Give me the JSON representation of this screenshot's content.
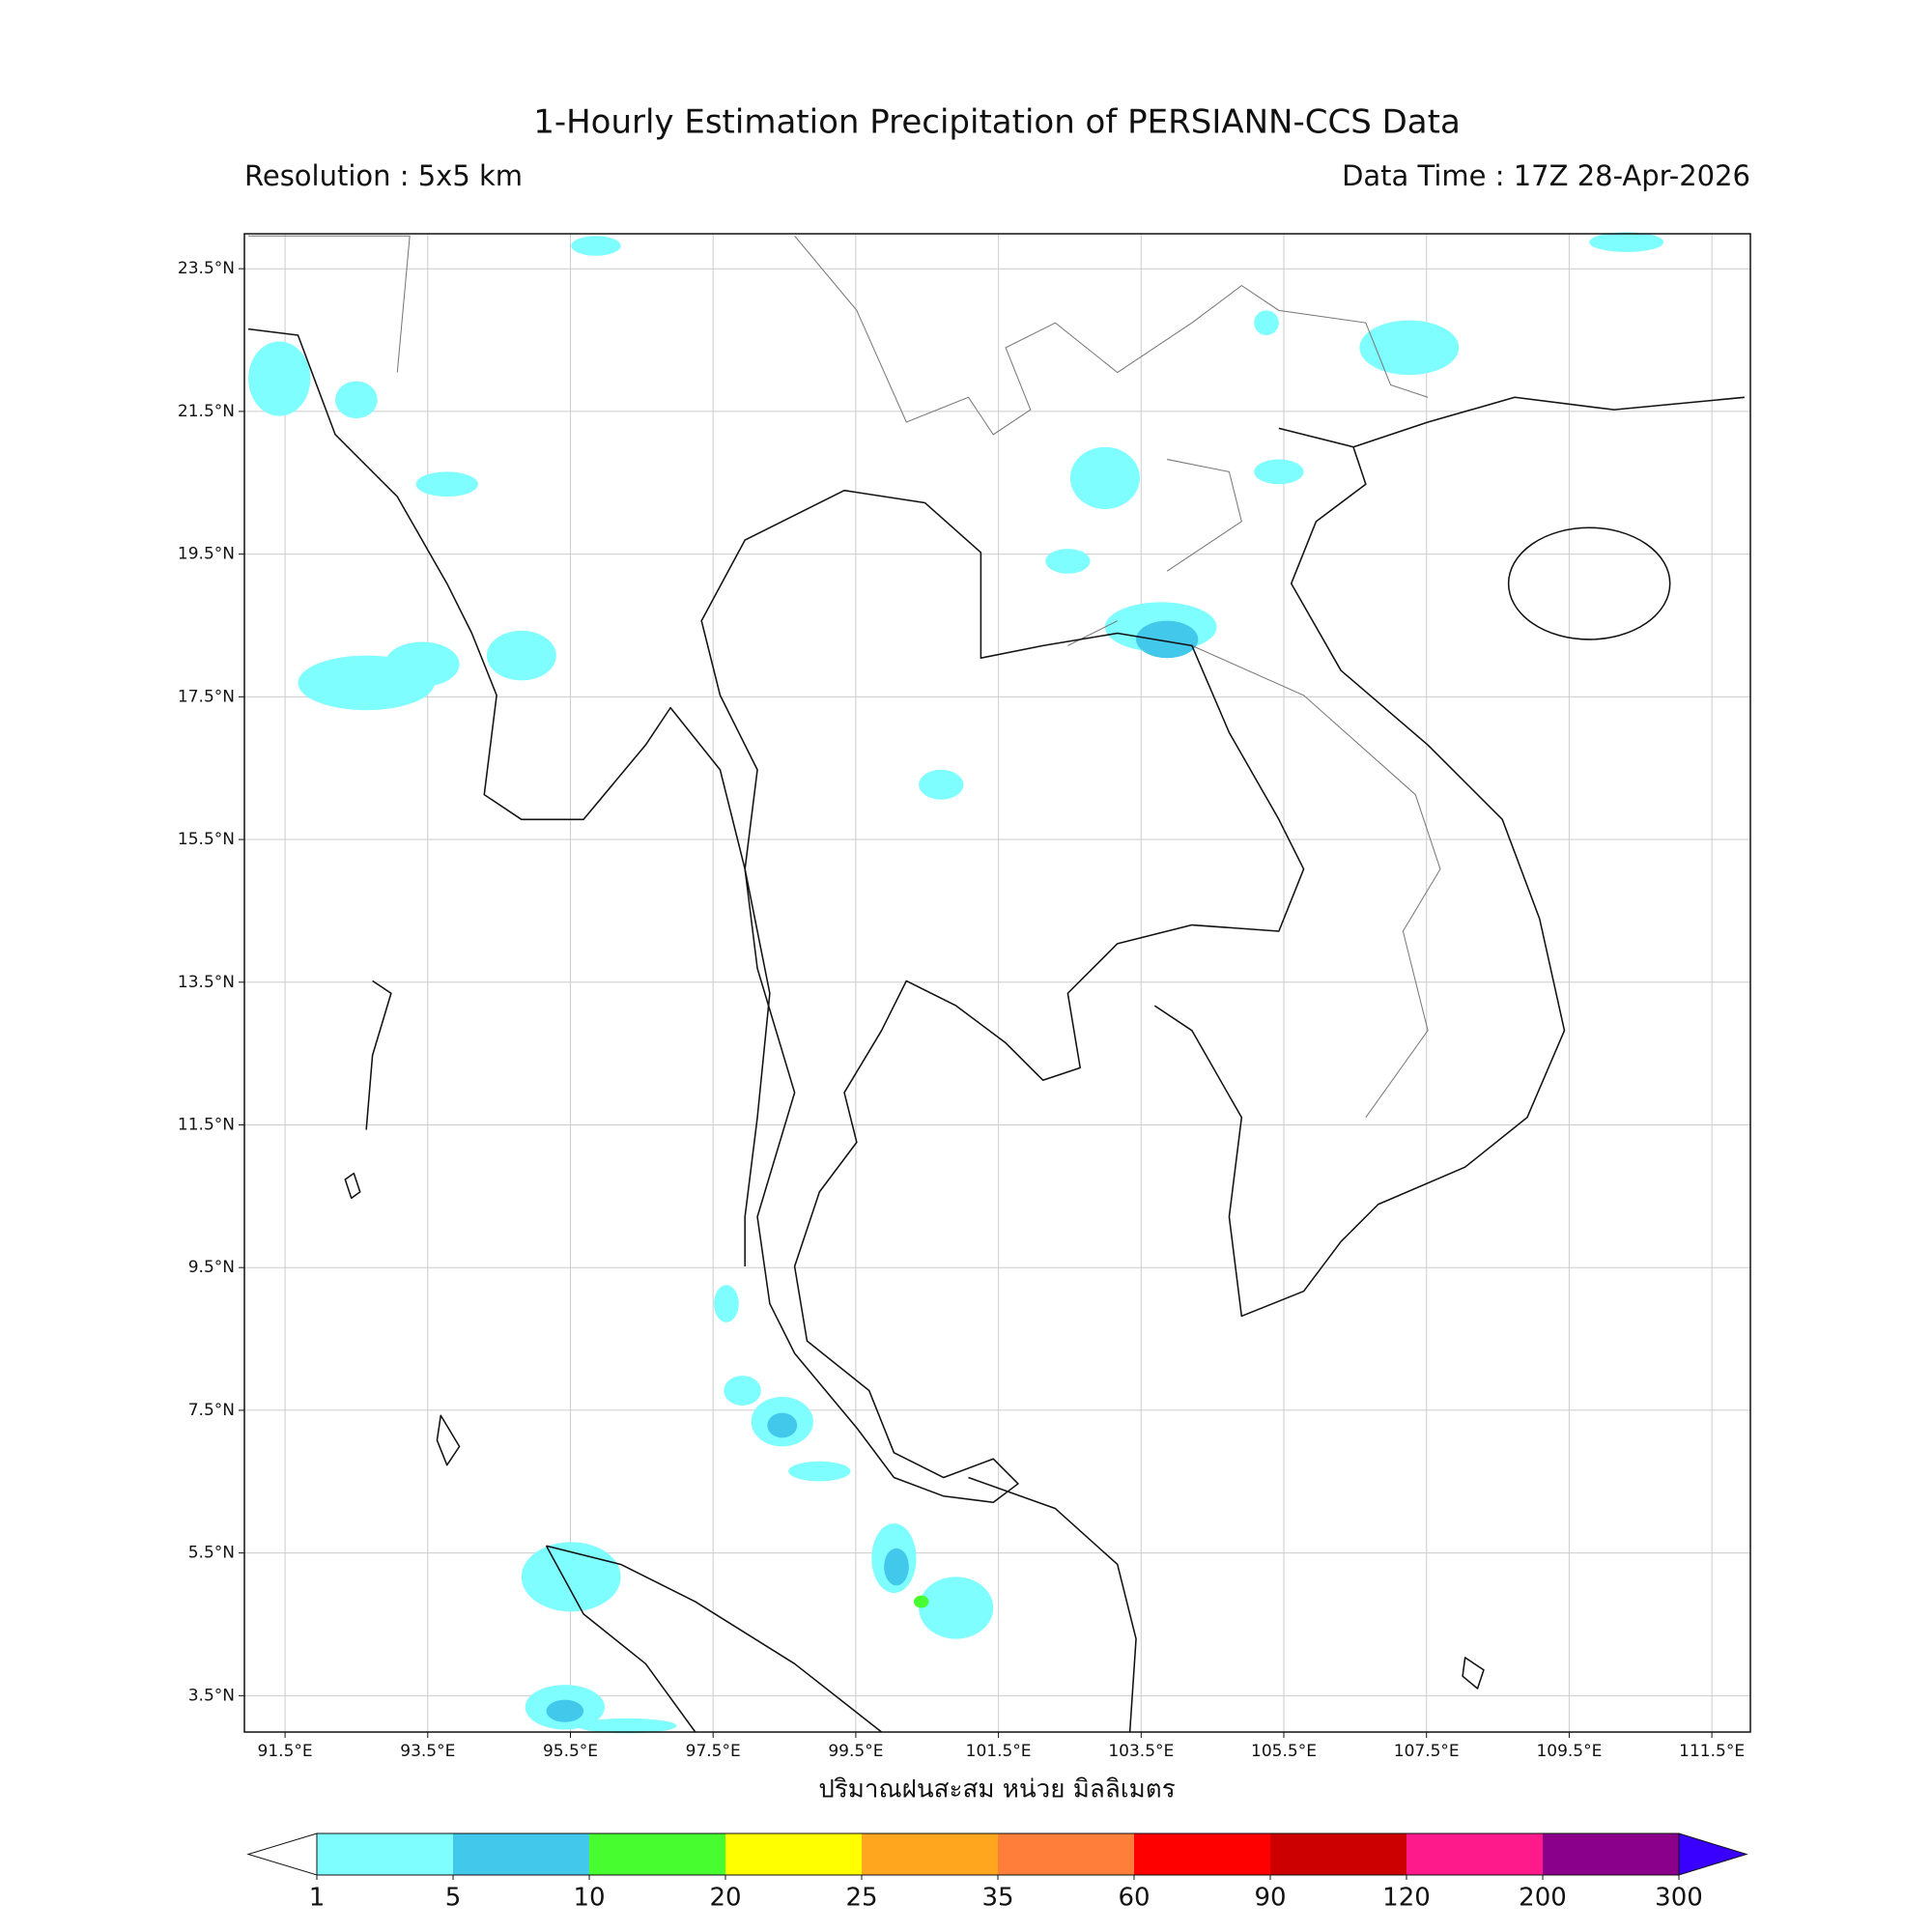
{
  "header": {
    "title": "1-Hourly Estimation Precipitation of PERSIANN-CCS Data",
    "resolution": "Resolution : 5x5 km",
    "data_time": "Data Time : 17Z 28-Apr-2026"
  },
  "map": {
    "xlim": [
      90.93,
      112.04
    ],
    "ylim": [
      2.99,
      23.99
    ],
    "grid": true,
    "xticks": [
      {
        "value": 91.5,
        "label": "91.5°E"
      },
      {
        "value": 93.5,
        "label": "93.5°E"
      },
      {
        "value": 95.5,
        "label": "95.5°E"
      },
      {
        "value": 97.5,
        "label": "97.5°E"
      },
      {
        "value": 99.5,
        "label": "99.5°E"
      },
      {
        "value": 101.5,
        "label": "101.5°E"
      },
      {
        "value": 103.5,
        "label": "103.5°E"
      },
      {
        "value": 105.5,
        "label": "105.5°E"
      },
      {
        "value": 107.5,
        "label": "107.5°E"
      },
      {
        "value": 109.5,
        "label": "109.5°E"
      },
      {
        "value": 111.5,
        "label": "111.5°E"
      }
    ],
    "yticks": [
      {
        "value": 23.5,
        "label": "23.5°N"
      },
      {
        "value": 21.5,
        "label": "21.5°N"
      },
      {
        "value": 19.5,
        "label": "19.5°N"
      },
      {
        "value": 17.5,
        "label": "17.5°N"
      },
      {
        "value": 15.5,
        "label": "15.5°N"
      },
      {
        "value": 13.5,
        "label": "13.5°N"
      },
      {
        "value": 11.5,
        "label": "11.5°N"
      },
      {
        "value": 9.5,
        "label": "9.5°N"
      },
      {
        "value": 7.5,
        "label": "7.5°N"
      },
      {
        "value": 5.5,
        "label": "5.5°N"
      },
      {
        "value": 3.5,
        "label": "3.5°N"
      }
    ],
    "xlabel": "ปริมาณฝนสะสม หน่วย มิลลิเมตร"
  },
  "colorbar": {
    "bounds": [
      1,
      5,
      10,
      20,
      25,
      35,
      60,
      90,
      120,
      200,
      300
    ],
    "colors": [
      "#7ffeff",
      "#42c8ea",
      "#47fc2f",
      "#ffff00",
      "#ffa61e",
      "#ff7f3a",
      "#ff0000",
      "#cc0000",
      "#ff1a8c",
      "#8b008b"
    ],
    "under_color": "#ffffff",
    "over_color": "#3a00ff"
  }
}
